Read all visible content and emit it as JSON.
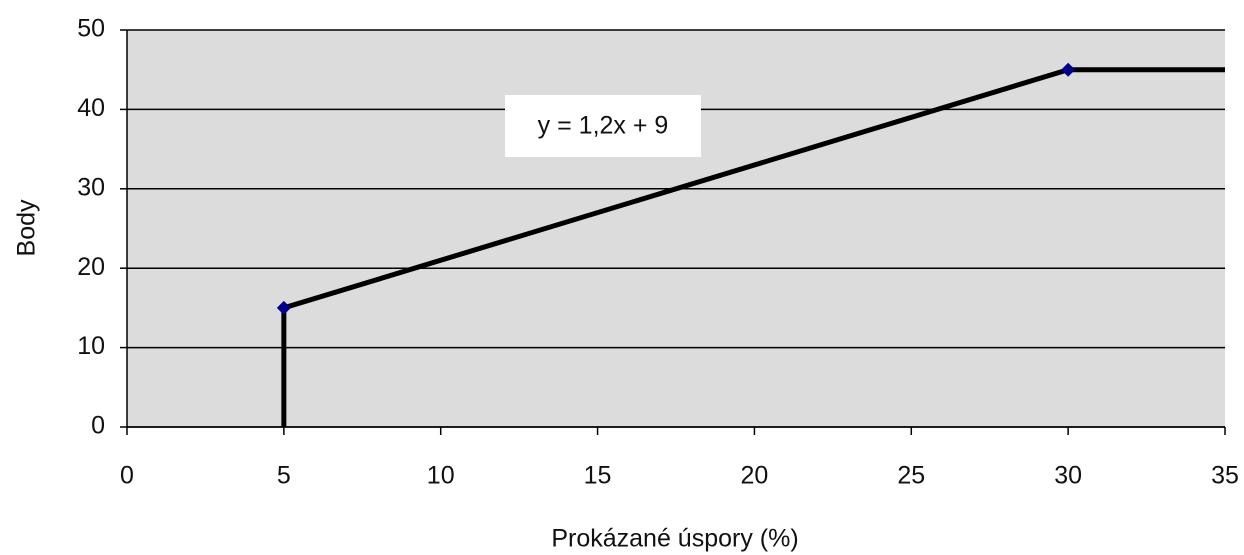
{
  "chart_data": {
    "type": "line",
    "xlabel": "Prokázané úspory (%)",
    "ylabel": "Body",
    "annotation": "y = 1,2x + 9",
    "series": [
      {
        "color": "#000000",
        "x": [
          5,
          5,
          30,
          35
        ],
        "values": [
          0,
          15,
          45,
          45
        ]
      },
      {
        "color": "#00008b",
        "marker": "diamond",
        "x": [
          5,
          30
        ],
        "values": [
          15,
          45
        ]
      }
    ],
    "xlim": [
      0,
      35
    ],
    "xticks": [
      0,
      5,
      10,
      15,
      20,
      25,
      30,
      35
    ],
    "ylim": [
      0,
      50
    ],
    "yticks": [
      0,
      10,
      20,
      30,
      40,
      50
    ],
    "grid": true
  }
}
